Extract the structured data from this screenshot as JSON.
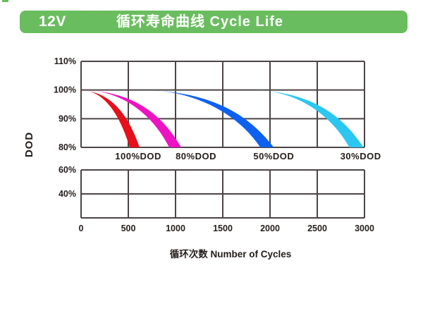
{
  "header": {
    "voltage_label": "12V",
    "title": "循环寿命曲线 Cycle Life",
    "bar_color": "#6abd5f",
    "text_color": "#ffffff"
  },
  "chart_data": {
    "type": "area",
    "title": "循环寿命曲线 Cycle Life",
    "xlabel": "循环次数 Number of Cycles",
    "ylabel": "DOD",
    "x_range": [
      0,
      3000
    ],
    "x_ticks": [
      0,
      500,
      1000,
      1500,
      2000,
      2500,
      3000
    ],
    "upper_panel": {
      "y_tick_labels": [
        "110%",
        "100%",
        "90%",
        "80%"
      ],
      "y_tick_values": [
        110,
        100,
        90,
        80
      ],
      "y_range": [
        80,
        110
      ]
    },
    "lower_panel": {
      "y_tick_labels": [
        "60%",
        "40%"
      ],
      "y_tick_values": [
        60,
        40
      ],
      "y_range": [
        20,
        60
      ]
    },
    "grid": "on",
    "legend_position": "below-curves",
    "series": [
      {
        "name": "100%DOD",
        "color": "#e60f1a",
        "points": [
          {
            "cycles": 0,
            "capacity_pct": 100
          },
          {
            "cycles": 620,
            "capacity_pct": 80
          }
        ]
      },
      {
        "name": "80%DOD",
        "color": "#ee12c3",
        "points": [
          {
            "cycles": 30,
            "capacity_pct": 100
          },
          {
            "cycles": 1060,
            "capacity_pct": 80
          }
        ]
      },
      {
        "name": "50%DOD",
        "color": "#0e61ef",
        "points": [
          {
            "cycles": 680,
            "capacity_pct": 100
          },
          {
            "cycles": 2040,
            "capacity_pct": 80
          }
        ]
      },
      {
        "name": "30%DOD",
        "color": "#2bc7f0",
        "points": [
          {
            "cycles": 1830,
            "capacity_pct": 100
          },
          {
            "cycles": 2990,
            "capacity_pct": 80
          }
        ]
      }
    ]
  }
}
